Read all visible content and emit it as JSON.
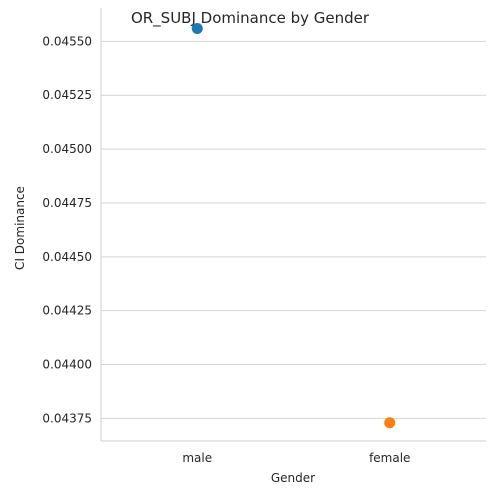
{
  "chart_data": {
    "type": "scatter",
    "title": "OR_SUBJ Dominance by Gender",
    "xlabel": "Gender",
    "ylabel": "CI Dominance",
    "categories": [
      "male",
      "female"
    ],
    "points": [
      {
        "category": "male",
        "value": 0.04556,
        "color": "#1f77b4"
      },
      {
        "category": "female",
        "value": 0.04373,
        "color": "#ff7f0e"
      }
    ],
    "yticks": [
      0.04375,
      0.044,
      0.04425,
      0.0445,
      0.04475,
      0.045,
      0.04525,
      0.0455
    ],
    "ytick_labels": [
      "0.04375",
      "0.04400",
      "0.04425",
      "0.04450",
      "0.04475",
      "0.04500",
      "0.04525",
      "0.04550"
    ],
    "ylim": [
      0.043645,
      0.045655
    ],
    "grid": "horizontal",
    "legend": "none"
  }
}
